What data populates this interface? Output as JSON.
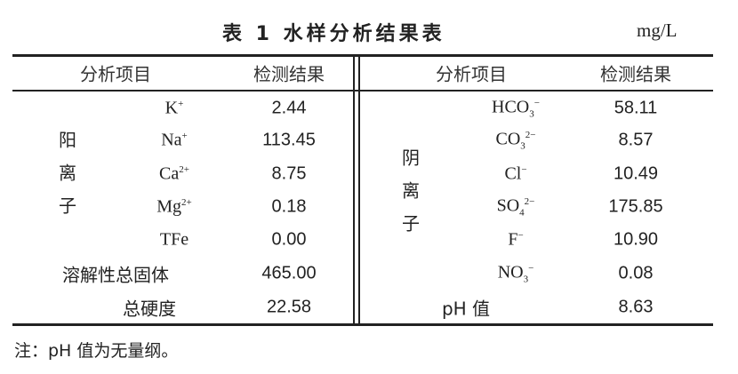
{
  "title": "表 1  水样分析结果表",
  "unit": "mg/L",
  "headers": {
    "item": "分析项目",
    "result": "检测结果"
  },
  "left": {
    "group_label": "阳离子",
    "ions": [
      {
        "base": "K",
        "sub": "",
        "sup": "+",
        "value": "2.44"
      },
      {
        "base": "Na",
        "sub": "",
        "sup": "+",
        "value": "113.45"
      },
      {
        "base": "Ca",
        "sub": "",
        "sup": "2+",
        "value": "8.75"
      },
      {
        "base": "Mg",
        "sub": "",
        "sup": "2+",
        "value": "0.18"
      },
      {
        "base": "TFe",
        "sub": "",
        "sup": "",
        "value": "0.00"
      }
    ],
    "tds": {
      "label": "溶解性总固体",
      "value": "465.00"
    },
    "hardness": {
      "label": "总硬度",
      "value": "22.58"
    }
  },
  "right": {
    "group_label": "阴离子",
    "ions": [
      {
        "base": "HCO",
        "sub": "3",
        "sup": "−",
        "value": "58.11"
      },
      {
        "base": "CO",
        "sub": "3",
        "sup": "2−",
        "value": "8.57"
      },
      {
        "base": "Cl",
        "sub": "",
        "sup": "−",
        "value": "10.49"
      },
      {
        "base": "SO",
        "sub": "4",
        "sup": "2−",
        "value": "175.85"
      },
      {
        "base": "F",
        "sub": "",
        "sup": "−",
        "value": "10.90"
      },
      {
        "base": "NO",
        "sub": "3",
        "sup": "−",
        "value": "0.08"
      }
    ],
    "ph": {
      "label": "pH 值",
      "value": "8.63"
    }
  },
  "note": "注：pH 值为无量纲。"
}
